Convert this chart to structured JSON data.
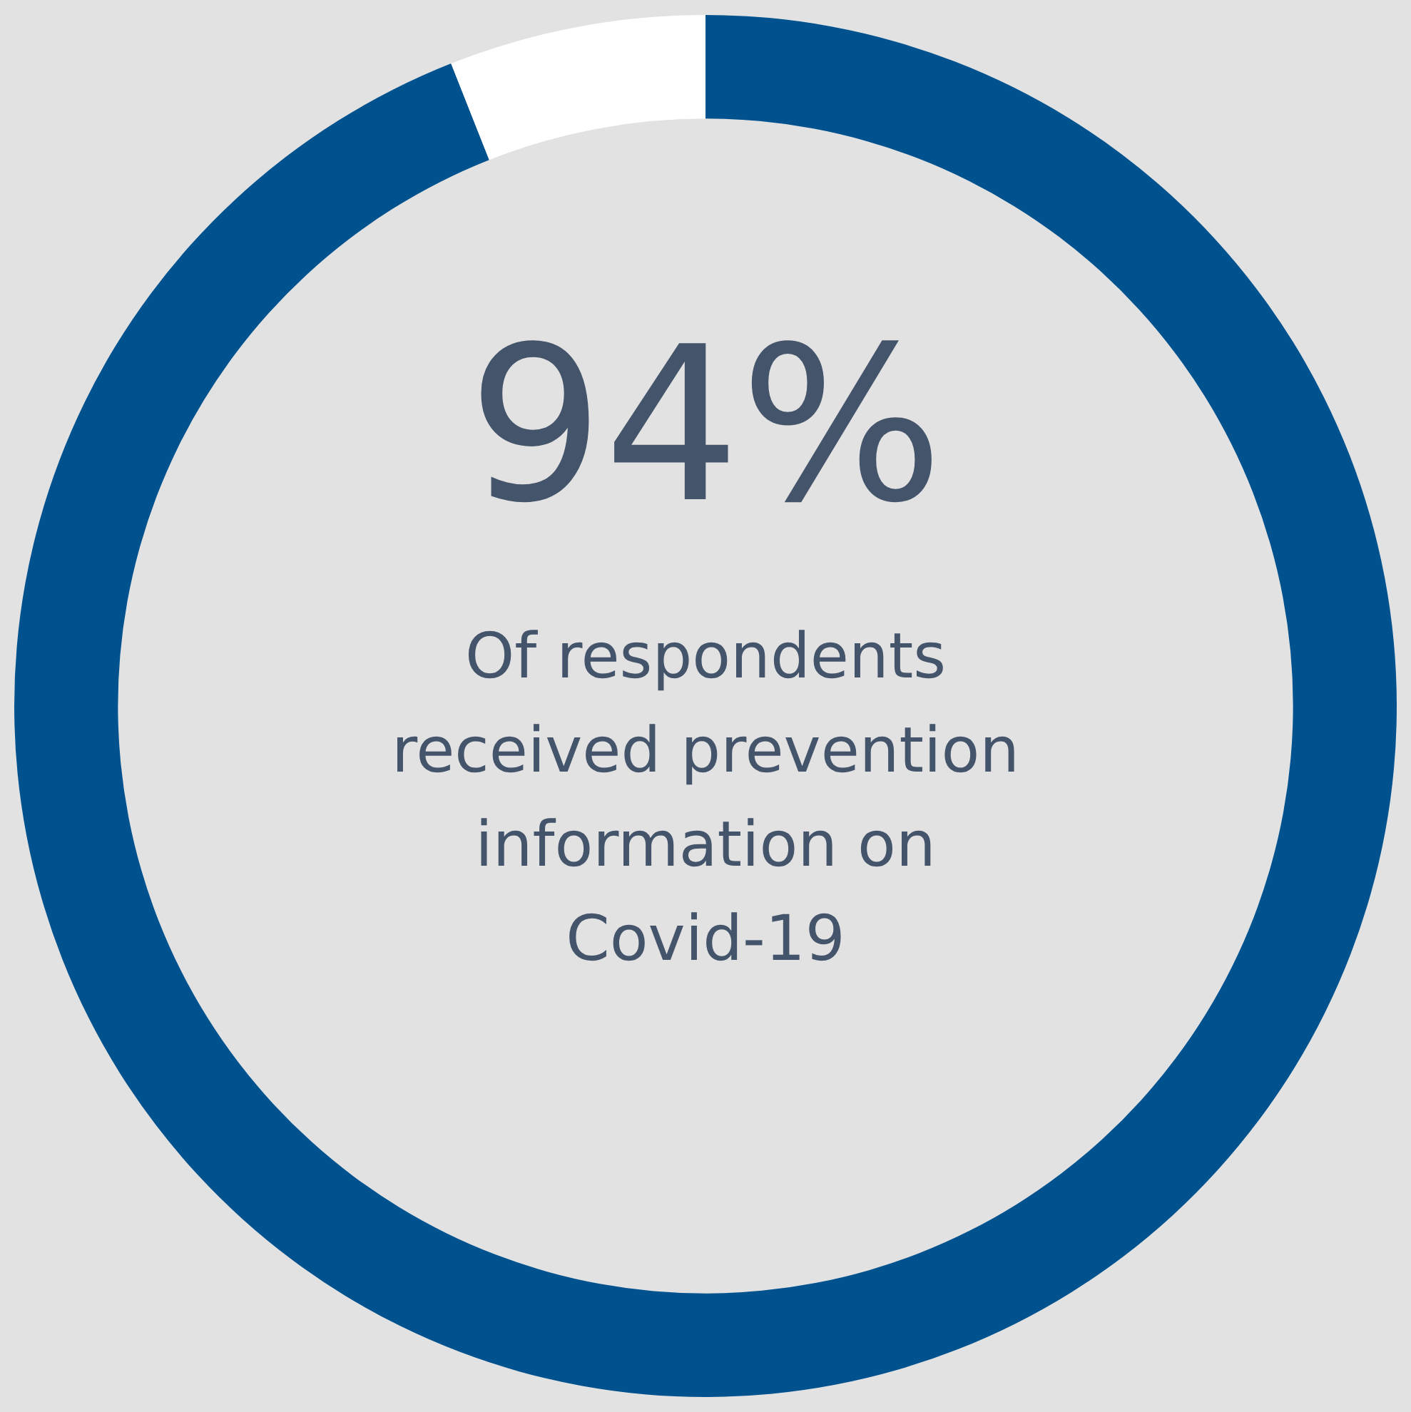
{
  "chart_data": {
    "type": "donut",
    "categories": [
      null,
      null
    ],
    "values": [
      94,
      6
    ],
    "colors": [
      "#00528f",
      "#ffffff"
    ],
    "value_labels": [
      "94%",
      null
    ],
    "annotations": [
      "Of respondents received prevention information on Covid-19"
    ]
  }
}
